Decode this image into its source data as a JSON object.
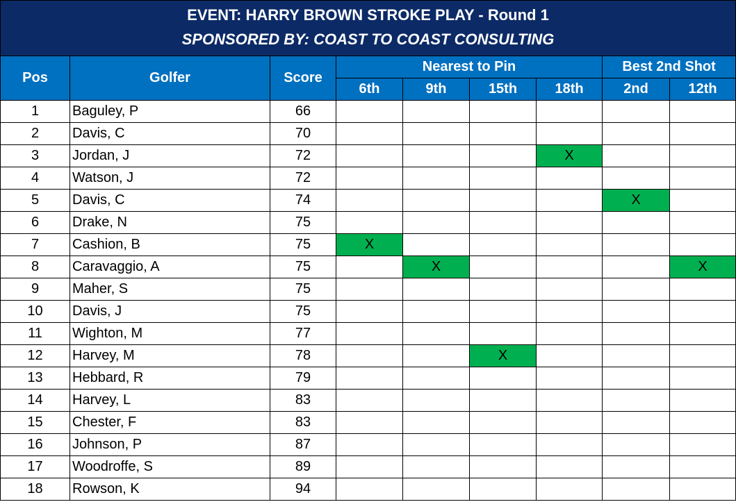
{
  "header": {
    "title": "EVENT: HARRY BROWN STROKE PLAY - Round 1",
    "subtitle": "SPONSORED BY: COAST TO COAST CONSULTING"
  },
  "table": {
    "columns": [
      "Pos",
      "Golfer",
      "Score"
    ],
    "groups": [
      {
        "label": "Nearest to Pin",
        "holes": [
          "6th",
          "9th",
          "15th",
          "18th"
        ]
      },
      {
        "label": "Best 2nd Shot",
        "holes": [
          "2nd",
          "12th"
        ]
      }
    ],
    "highlight_color": "#00b050",
    "rows": [
      [
        1,
        "Baguley, P",
        66,
        null,
        null,
        null,
        null,
        null,
        null
      ],
      [
        2,
        "Davis, C",
        70,
        null,
        null,
        null,
        null,
        null,
        null
      ],
      [
        3,
        "Jordan, J",
        72,
        null,
        null,
        null,
        "X",
        null,
        null
      ],
      [
        4,
        "Watson, J",
        72,
        null,
        null,
        null,
        null,
        null,
        null
      ],
      [
        5,
        "Davis, C",
        74,
        null,
        null,
        null,
        null,
        "X",
        null
      ],
      [
        6,
        "Drake, N",
        75,
        null,
        null,
        null,
        null,
        null,
        null
      ],
      [
        7,
        "Cashion, B",
        75,
        "X",
        null,
        null,
        null,
        null,
        null
      ],
      [
        8,
        "Caravaggio, A",
        75,
        null,
        "X",
        null,
        null,
        null,
        "X"
      ],
      [
        9,
        "Maher, S",
        75,
        null,
        null,
        null,
        null,
        null,
        null
      ],
      [
        10,
        "Davis, J",
        75,
        null,
        null,
        null,
        null,
        null,
        null
      ],
      [
        11,
        "Wighton, M",
        77,
        null,
        null,
        null,
        null,
        null,
        null
      ],
      [
        12,
        "Harvey, M",
        78,
        null,
        null,
        "X",
        null,
        null,
        null
      ],
      [
        13,
        "Hebbard, R",
        79,
        null,
        null,
        null,
        null,
        null,
        null
      ],
      [
        14,
        "Harvey, L",
        83,
        null,
        null,
        null,
        null,
        null,
        null
      ],
      [
        15,
        "Chester, F",
        83,
        null,
        null,
        null,
        null,
        null,
        null
      ],
      [
        16,
        "Johnson, P",
        87,
        null,
        null,
        null,
        null,
        null,
        null
      ],
      [
        17,
        "Woodroffe, S",
        89,
        null,
        null,
        null,
        null,
        null,
        null
      ],
      [
        18,
        "Rowson, K",
        94,
        null,
        null,
        null,
        null,
        null,
        null
      ]
    ]
  }
}
